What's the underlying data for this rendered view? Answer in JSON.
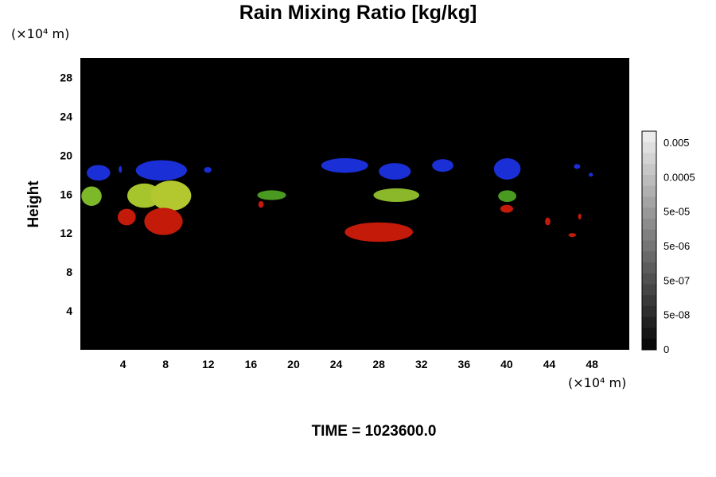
{
  "title": "Rain Mixing Ratio [kg/kg]",
  "y_unit_label": "(×10⁴ m)",
  "x_unit_label": "(×10⁴ m)",
  "ylabel": "Height",
  "time_label": "TIME = 1023600.0",
  "chart_data": {
    "type": "heatmap",
    "title": "Rain Mixing Ratio [kg/kg]",
    "xlabel": "",
    "ylabel": "Height",
    "xlim": [
      0,
      51.5
    ],
    "ylim": [
      0,
      30
    ],
    "x_ticks": [
      4,
      8,
      12,
      16,
      20,
      24,
      28,
      32,
      36,
      40,
      44,
      48
    ],
    "y_ticks": [
      4,
      8,
      12,
      16,
      20,
      24,
      28
    ],
    "background_color": "#000000",
    "colorbar": {
      "labels": [
        "0.005",
        "0.0005",
        "5e-05",
        "5e-06",
        "5e-07",
        "5e-08",
        "0"
      ],
      "levels": 20
    },
    "blobs": [
      {
        "color": "#1a2fd6",
        "x": [
          0.6,
          2.8
        ],
        "y": [
          17.4,
          19.0
        ]
      },
      {
        "color": "#1a2fd6",
        "x": [
          3.6,
          3.9
        ],
        "y": [
          18.2,
          18.9
        ]
      },
      {
        "color": "#1a2fd6",
        "x": [
          5.2,
          10.0
        ],
        "y": [
          17.4,
          19.5
        ]
      },
      {
        "color": "#1a2fd6",
        "x": [
          11.6,
          12.3
        ],
        "y": [
          18.2,
          18.8
        ]
      },
      {
        "color": "#1a2fd6",
        "x": [
          22.6,
          27.0
        ],
        "y": [
          18.2,
          19.7
        ]
      },
      {
        "color": "#1a2fd6",
        "x": [
          28.0,
          31.0
        ],
        "y": [
          17.5,
          19.2
        ]
      },
      {
        "color": "#1a2fd6",
        "x": [
          33.0,
          35.0
        ],
        "y": [
          18.3,
          19.6
        ]
      },
      {
        "color": "#1a2fd6",
        "x": [
          38.8,
          41.3
        ],
        "y": [
          17.5,
          19.7
        ]
      },
      {
        "color": "#1a2fd6",
        "x": [
          46.3,
          46.9
        ],
        "y": [
          18.6,
          19.1
        ]
      },
      {
        "color": "#1a2fd6",
        "x": [
          47.7,
          48.1
        ],
        "y": [
          17.8,
          18.2
        ]
      },
      {
        "color": "#7db82a",
        "x": [
          0.1,
          2.0
        ],
        "y": [
          14.8,
          16.8
        ]
      },
      {
        "color": "#a6c42c",
        "x": [
          4.4,
          7.6
        ],
        "y": [
          14.6,
          17.1
        ]
      },
      {
        "color": "#b2c82e",
        "x": [
          6.6,
          10.4
        ],
        "y": [
          14.3,
          17.4
        ]
      },
      {
        "color": "#4a9a22",
        "x": [
          16.6,
          19.3
        ],
        "y": [
          15.4,
          16.4
        ]
      },
      {
        "color": "#8ab82a",
        "x": [
          27.5,
          31.8
        ],
        "y": [
          15.2,
          16.6
        ]
      },
      {
        "color": "#4a9a22",
        "x": [
          39.2,
          40.9
        ],
        "y": [
          15.2,
          16.4
        ]
      },
      {
        "color": "#c41a0a",
        "x": [
          3.5,
          5.2
        ],
        "y": [
          12.8,
          14.5
        ]
      },
      {
        "color": "#c41a0a",
        "x": [
          6.0,
          9.6
        ],
        "y": [
          11.8,
          14.6
        ]
      },
      {
        "color": "#c41a0a",
        "x": [
          16.7,
          17.2
        ],
        "y": [
          14.6,
          15.3
        ]
      },
      {
        "color": "#c41a0a",
        "x": [
          24.8,
          31.2
        ],
        "y": [
          11.1,
          13.1
        ]
      },
      {
        "color": "#c41a0a",
        "x": [
          39.4,
          40.6
        ],
        "y": [
          14.1,
          14.9
        ]
      },
      {
        "color": "#c41a0a",
        "x": [
          43.6,
          44.1
        ],
        "y": [
          12.8,
          13.6
        ]
      },
      {
        "color": "#c41a0a",
        "x": [
          45.8,
          46.5
        ],
        "y": [
          11.6,
          12.0
        ]
      },
      {
        "color": "#c41a0a",
        "x": [
          46.7,
          47.0
        ],
        "y": [
          13.4,
          14.0
        ]
      }
    ]
  }
}
